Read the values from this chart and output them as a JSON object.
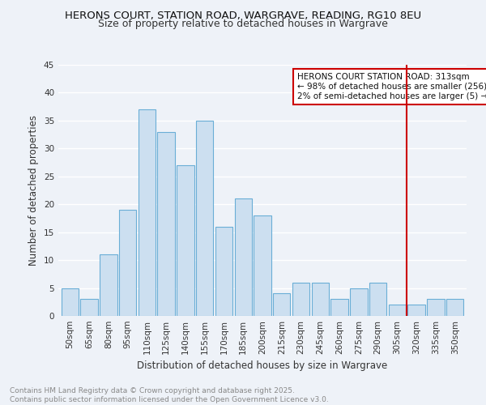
{
  "title": "HERONS COURT, STATION ROAD, WARGRAVE, READING, RG10 8EU",
  "subtitle": "Size of property relative to detached houses in Wargrave",
  "xlabel": "Distribution of detached houses by size in Wargrave",
  "ylabel": "Number of detached properties",
  "categories": [
    "50sqm",
    "65sqm",
    "80sqm",
    "95sqm",
    "110sqm",
    "125sqm",
    "140sqm",
    "155sqm",
    "170sqm",
    "185sqm",
    "200sqm",
    "215sqm",
    "230sqm",
    "245sqm",
    "260sqm",
    "275sqm",
    "290sqm",
    "305sqm",
    "320sqm",
    "335sqm",
    "350sqm"
  ],
  "values": [
    5,
    3,
    11,
    19,
    37,
    33,
    27,
    35,
    16,
    21,
    18,
    4,
    6,
    6,
    3,
    5,
    6,
    2,
    2,
    3,
    3
  ],
  "bar_color": "#ccdff0",
  "bar_edge_color": "#6aaed6",
  "vline_color": "#cc0000",
  "annotation_text": "HERONS COURT STATION ROAD: 313sqm\n← 98% of detached houses are smaller (256)\n2% of semi-detached houses are larger (5) →",
  "annotation_box_color": "#ffffff",
  "annotation_edge_color": "#cc0000",
  "bg_color": "#eef2f8",
  "grid_color": "#ffffff",
  "footer_text": "Contains HM Land Registry data © Crown copyright and database right 2025.\nContains public sector information licensed under the Open Government Licence v3.0.",
  "ylim": [
    0,
    45
  ],
  "yticks": [
    0,
    5,
    10,
    15,
    20,
    25,
    30,
    35,
    40,
    45
  ],
  "title_fontsize": 9.5,
  "subtitle_fontsize": 9.0,
  "axis_label_fontsize": 8.5,
  "tick_fontsize": 7.5,
  "footer_fontsize": 6.5,
  "annotation_fontsize": 7.5
}
